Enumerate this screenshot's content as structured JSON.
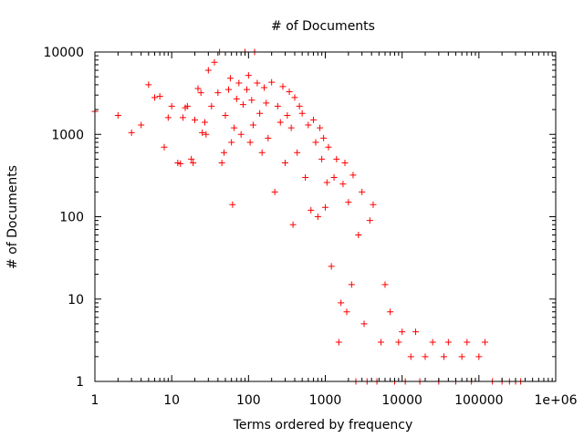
{
  "chart_data": {
    "type": "scatter",
    "title": "# of Documents",
    "xlabel": "Terms ordered by frequency",
    "ylabel": "# of Documents",
    "x_scale": "log",
    "y_scale": "log",
    "xlim": [
      1,
      1000000
    ],
    "ylim": [
      1,
      10000
    ],
    "x_ticks": [
      "1",
      "10",
      "100",
      "1000",
      "10000",
      "100000",
      "1e+06"
    ],
    "y_ticks": [
      "1",
      "10",
      "100",
      "1000",
      "10000"
    ],
    "grid": false,
    "legend": "none",
    "marker": "plus",
    "color": "#ff0000",
    "series": [
      {
        "points": [
          [
            1,
            1900
          ],
          [
            2,
            1700
          ],
          [
            3,
            1050
          ],
          [
            4,
            1300
          ],
          [
            5,
            4000
          ],
          [
            6,
            2800
          ],
          [
            7,
            2900
          ],
          [
            8,
            700
          ],
          [
            9,
            1600
          ],
          [
            10,
            2200
          ],
          [
            12,
            450
          ],
          [
            13,
            440
          ],
          [
            14,
            1600
          ],
          [
            15,
            2100
          ],
          [
            16,
            2200
          ],
          [
            18,
            500
          ],
          [
            19,
            450
          ],
          [
            20,
            1500
          ],
          [
            22,
            3600
          ],
          [
            24,
            3200
          ],
          [
            25,
            1050
          ],
          [
            27,
            1400
          ],
          [
            28,
            1000
          ],
          [
            30,
            6000
          ],
          [
            33,
            2200
          ],
          [
            36,
            7500
          ],
          [
            40,
            3200
          ],
          [
            42,
            10000
          ],
          [
            45,
            450
          ],
          [
            48,
            600
          ],
          [
            50,
            1700
          ],
          [
            55,
            3500
          ],
          [
            58,
            4800
          ],
          [
            60,
            800
          ],
          [
            62,
            140
          ],
          [
            65,
            1200
          ],
          [
            70,
            2700
          ],
          [
            75,
            4200
          ],
          [
            80,
            1000
          ],
          [
            85,
            2300
          ],
          [
            90,
            10000
          ],
          [
            95,
            3500
          ],
          [
            100,
            5200
          ],
          [
            105,
            800
          ],
          [
            110,
            2600
          ],
          [
            115,
            1300
          ],
          [
            120,
            10000
          ],
          [
            130,
            4200
          ],
          [
            140,
            1800
          ],
          [
            150,
            600
          ],
          [
            160,
            3700
          ],
          [
            170,
            2400
          ],
          [
            180,
            900
          ],
          [
            200,
            4300
          ],
          [
            220,
            200
          ],
          [
            240,
            2200
          ],
          [
            260,
            1400
          ],
          [
            280,
            3800
          ],
          [
            300,
            450
          ],
          [
            320,
            1700
          ],
          [
            340,
            3300
          ],
          [
            360,
            1200
          ],
          [
            380,
            80
          ],
          [
            400,
            2800
          ],
          [
            430,
            600
          ],
          [
            460,
            2200
          ],
          [
            500,
            1800
          ],
          [
            550,
            300
          ],
          [
            600,
            1300
          ],
          [
            650,
            120
          ],
          [
            700,
            1500
          ],
          [
            750,
            800
          ],
          [
            800,
            100
          ],
          [
            850,
            1200
          ],
          [
            900,
            500
          ],
          [
            950,
            900
          ],
          [
            1000,
            130
          ],
          [
            1050,
            260
          ],
          [
            1100,
            700
          ],
          [
            1200,
            25
          ],
          [
            1300,
            300
          ],
          [
            1400,
            500
          ],
          [
            1500,
            3
          ],
          [
            1600,
            9
          ],
          [
            1700,
            250
          ],
          [
            1800,
            450
          ],
          [
            1900,
            7
          ],
          [
            2000,
            150
          ],
          [
            2200,
            15
          ],
          [
            2300,
            320
          ],
          [
            2500,
            1
          ],
          [
            2700,
            60
          ],
          [
            3000,
            200
          ],
          [
            3200,
            5
          ],
          [
            3500,
            1
          ],
          [
            3800,
            90
          ],
          [
            4200,
            140
          ],
          [
            4700,
            1
          ],
          [
            5300,
            3
          ],
          [
            6000,
            15
          ],
          [
            7000,
            7
          ],
          [
            8000,
            1
          ],
          [
            9000,
            3
          ],
          [
            10000,
            4
          ],
          [
            11000,
            1
          ],
          [
            13000,
            2
          ],
          [
            15000,
            4
          ],
          [
            17000,
            1
          ],
          [
            20000,
            2
          ],
          [
            25000,
            3
          ],
          [
            30000,
            1
          ],
          [
            35000,
            2
          ],
          [
            40000,
            3
          ],
          [
            50000,
            1
          ],
          [
            60000,
            2
          ],
          [
            70000,
            3
          ],
          [
            80000,
            1
          ],
          [
            100000,
            2
          ],
          [
            120000,
            3
          ],
          [
            150000,
            1
          ],
          [
            200000,
            1
          ],
          [
            250000,
            1
          ],
          [
            300000,
            1
          ],
          [
            350000,
            1
          ]
        ]
      }
    ]
  }
}
